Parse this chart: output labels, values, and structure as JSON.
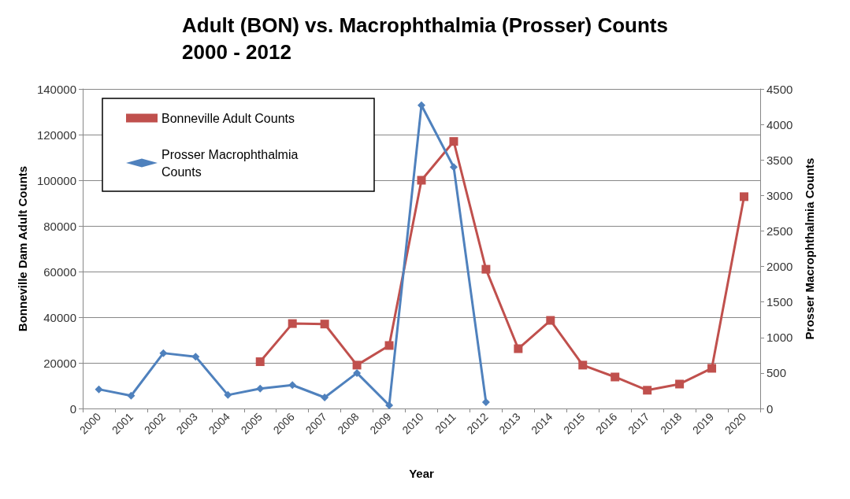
{
  "chart_data": {
    "type": "line",
    "title": "Adult (BON) vs. Macrophthalmia (Prosser) Counts\n2000 - 2012",
    "xlabel": "Year",
    "ylabel": "Bonneville Dam Adult Counts",
    "y2label": "Prosser Macrophthalmia Counts",
    "categories": [
      "2000",
      "2001",
      "2002",
      "2003",
      "2004",
      "2005",
      "2006",
      "2007",
      "2008",
      "2009",
      "2010",
      "2011",
      "2012",
      "2013",
      "2014",
      "2015",
      "2016",
      "2017",
      "2018",
      "2019",
      "2020"
    ],
    "series": [
      {
        "name": "Bonneville Adult Counts",
        "color": "#c0504d",
        "marker": "square",
        "values": [
          null,
          null,
          null,
          null,
          null,
          20500,
          37200,
          37000,
          19000,
          27600,
          100000,
          117000,
          61000,
          26200,
          38600,
          19000,
          13800,
          8000,
          10700,
          17600,
          92800
        ]
      },
      {
        "name": "Prosser Macrophthalmia Counts",
        "color": "#4f81bd",
        "marker": "diamond",
        "axis": "y2",
        "values": [
          270,
          180,
          780,
          730,
          190,
          280,
          330,
          155,
          500,
          45,
          4270,
          3400,
          90,
          null,
          null,
          null,
          null,
          null,
          null,
          null,
          null
        ]
      }
    ],
    "ylim": [
      0,
      140000
    ],
    "yticks": [
      0,
      20000,
      40000,
      60000,
      80000,
      100000,
      120000,
      140000
    ],
    "y2lim": [
      0,
      4500
    ],
    "y2ticks": [
      0,
      500,
      1000,
      1500,
      2000,
      2500,
      3000,
      3500,
      4000,
      4500
    ],
    "grid": "y",
    "legend": "top left"
  }
}
